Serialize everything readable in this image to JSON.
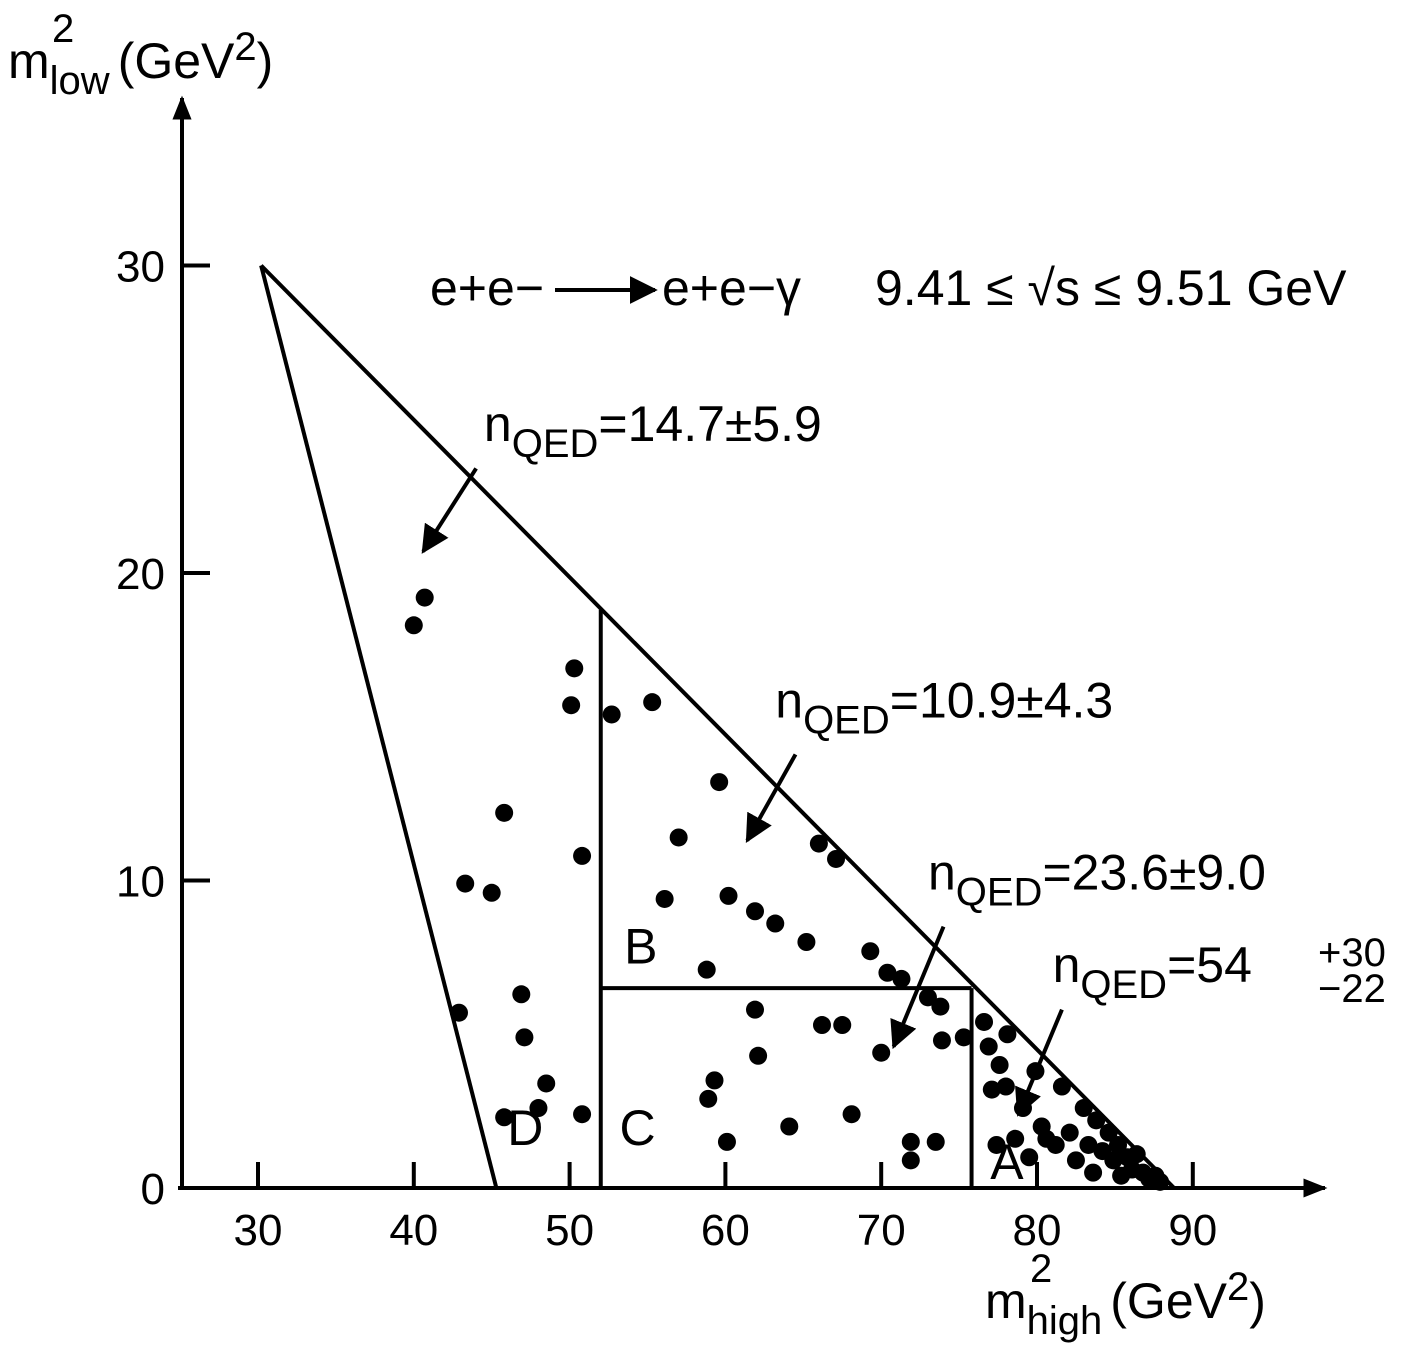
{
  "chart_data": {
    "type": "scatter",
    "title_left": "e",
    "title_reaction": {
      "lhs": "e+e−",
      "rhs": "e+e−γ",
      "energy": "9.41 ≤ √s ≤ 9.51 GeV"
    },
    "xlabel": {
      "base": "m",
      "sup": "2",
      "sub": "high",
      "unit": "(GeV",
      "unit_sup": "2",
      "close": ")"
    },
    "ylabel": {
      "base": "m",
      "sup": "2",
      "sub": "low",
      "unit": "(GeV",
      "unit_sup": "2",
      "close": ")"
    },
    "xlim": [
      25,
      98
    ],
    "ylim": [
      0,
      33
    ],
    "xticks": [
      30,
      40,
      50,
      60,
      70,
      80,
      90
    ],
    "yticks": [
      0,
      10,
      20,
      30
    ],
    "boundary_outer": [
      [
        30.2,
        30
      ],
      [
        88.8,
        0
      ]
    ],
    "boundary_inner": [
      [
        30.2,
        30
      ],
      [
        45.3,
        0
      ]
    ],
    "cut_lines": [
      {
        "from": [
          52.0,
          0
        ],
        "to": [
          52.0,
          18.8
        ]
      },
      {
        "from": [
          52.0,
          6.5
        ],
        "to": [
          75.8,
          6.5
        ]
      },
      {
        "from": [
          75.8,
          0
        ],
        "to": [
          75.8,
          6.5
        ]
      }
    ],
    "regions": [
      {
        "label": "A",
        "x": 77.0,
        "y": 0.3
      },
      {
        "label": "B",
        "x": 53.5,
        "y": 7.3
      },
      {
        "label": "C",
        "x": 53.2,
        "y": 1.4
      },
      {
        "label": "D",
        "x": 46.0,
        "y": 1.4
      }
    ],
    "annotations": [
      {
        "text_base": "n",
        "text_sub": "QED",
        "text_rest": "=14.7±5.9",
        "text_x": 44.5,
        "text_y": 24.3,
        "arrow_from": [
          44.0,
          23.4
        ],
        "arrow_to": [
          40.6,
          20.7
        ]
      },
      {
        "text_base": "n",
        "text_sub": "QED",
        "text_rest": "=10.9±4.3",
        "text_x": 63.2,
        "text_y": 15.3,
        "arrow_from": [
          64.5,
          14.1
        ],
        "arrow_to": [
          61.4,
          11.3
        ]
      },
      {
        "text_base": "n",
        "text_sub": "QED",
        "text_rest": "=23.6±9.0",
        "text_x": 73.0,
        "text_y": 9.7,
        "arrow_from": [
          74.0,
          8.5
        ],
        "arrow_to": [
          70.8,
          4.6
        ]
      },
      {
        "text_base": "n",
        "text_sub": "QED",
        "text_rest": "=54",
        "text_x": 81.0,
        "text_y": 6.7,
        "pm_top": "+30",
        "pm_bottom": "−22",
        "arrow_from": [
          81.6,
          5.8
        ],
        "arrow_to": [
          78.8,
          2.4
        ]
      }
    ],
    "points": [
      [
        40.0,
        18.3
      ],
      [
        40.7,
        19.2
      ],
      [
        42.9,
        5.7
      ],
      [
        43.3,
        9.9
      ],
      [
        45.0,
        9.6
      ],
      [
        45.8,
        12.2
      ],
      [
        45.8,
        2.3
      ],
      [
        46.9,
        6.3
      ],
      [
        47.1,
        4.9
      ],
      [
        48.0,
        2.6
      ],
      [
        48.5,
        3.4
      ],
      [
        50.1,
        15.7
      ],
      [
        50.3,
        16.9
      ],
      [
        50.8,
        10.8
      ],
      [
        50.8,
        2.4
      ],
      [
        52.7,
        15.4
      ],
      [
        55.3,
        15.8
      ],
      [
        56.1,
        9.4
      ],
      [
        57.0,
        11.4
      ],
      [
        58.8,
        7.1
      ],
      [
        58.9,
        2.9
      ],
      [
        59.3,
        3.5
      ],
      [
        59.6,
        13.2
      ],
      [
        60.2,
        9.5
      ],
      [
        60.1,
        1.5
      ],
      [
        61.9,
        9.0
      ],
      [
        61.9,
        5.8
      ],
      [
        62.1,
        4.3
      ],
      [
        63.2,
        8.6
      ],
      [
        64.1,
        2.0
      ],
      [
        65.2,
        8.0
      ],
      [
        66.0,
        11.2
      ],
      [
        66.2,
        5.3
      ],
      [
        67.1,
        10.7
      ],
      [
        67.5,
        5.3
      ],
      [
        68.1,
        2.4
      ],
      [
        69.3,
        7.7
      ],
      [
        70.0,
        4.4
      ],
      [
        70.4,
        7.0
      ],
      [
        71.3,
        6.8
      ],
      [
        71.9,
        1.5
      ],
      [
        71.9,
        0.9
      ],
      [
        73.5,
        1.5
      ],
      [
        73.0,
        6.2
      ],
      [
        73.8,
        5.9
      ],
      [
        73.9,
        4.8
      ],
      [
        75.3,
        4.9
      ],
      [
        76.6,
        5.4
      ],
      [
        76.9,
        4.6
      ],
      [
        77.1,
        3.2
      ],
      [
        77.4,
        1.4
      ],
      [
        77.6,
        4.0
      ],
      [
        78.1,
        5.0
      ],
      [
        78.0,
        3.3
      ],
      [
        78.6,
        1.6
      ],
      [
        79.1,
        2.6
      ],
      [
        79.5,
        1.0
      ],
      [
        79.9,
        3.8
      ],
      [
        80.3,
        2.0
      ],
      [
        80.6,
        1.6
      ],
      [
        81.2,
        1.4
      ],
      [
        81.6,
        3.3
      ],
      [
        82.1,
        1.8
      ],
      [
        82.5,
        0.9
      ],
      [
        83.0,
        2.6
      ],
      [
        83.3,
        1.4
      ],
      [
        83.6,
        0.5
      ],
      [
        83.8,
        2.2
      ],
      [
        84.2,
        1.2
      ],
      [
        84.6,
        1.8
      ],
      [
        84.9,
        0.9
      ],
      [
        85.2,
        1.4
      ],
      [
        85.4,
        0.4
      ],
      [
        85.8,
        1.0
      ],
      [
        86.1,
        0.6
      ],
      [
        86.4,
        1.1
      ],
      [
        86.8,
        0.5
      ],
      [
        87.2,
        0.3
      ],
      [
        87.6,
        0.4
      ],
      [
        87.9,
        0.2
      ]
    ]
  }
}
